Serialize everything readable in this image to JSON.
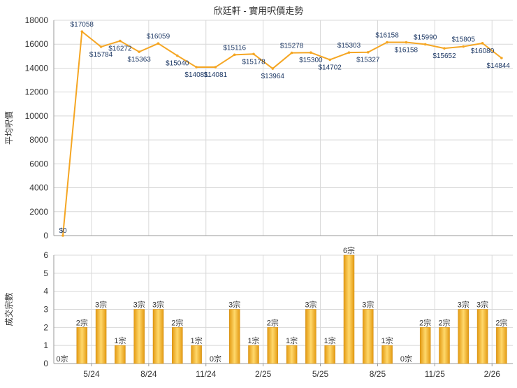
{
  "chart_data": [
    {
      "type": "line",
      "title": "欣廷軒 - 實用呎價走勢",
      "ylabel": "平均呎價",
      "ylim": [
        0,
        18000
      ],
      "yticks": [
        0,
        2000,
        4000,
        6000,
        8000,
        10000,
        12000,
        14000,
        16000,
        18000
      ],
      "grid": true,
      "color": "#f5a623",
      "values": [
        0,
        17058,
        15784,
        16272,
        15363,
        16059,
        15040,
        14081,
        14081,
        15116,
        15178,
        13964,
        15278,
        15300,
        14702,
        15303,
        15327,
        16158,
        16158,
        15990,
        15652,
        15805,
        16080,
        14844
      ],
      "labels": [
        "$0",
        "$17058",
        "$15784",
        "$16272",
        "$15363",
        "$16059",
        "$15040",
        "$14081",
        "$14081",
        "$15116",
        "$15178",
        "$13964",
        "$15278",
        "$15300",
        "$14702",
        "$15303",
        "$15327",
        "$16158",
        "$16158",
        "$15990",
        "$15652",
        "$15805",
        "$16080",
        "$14844"
      ]
    },
    {
      "type": "bar",
      "ylabel": "成交宗數",
      "ylim": [
        0,
        6
      ],
      "yticks": [
        0,
        1,
        2,
        3,
        4,
        5,
        6
      ],
      "grid": true,
      "color": "#f5b82e",
      "values": [
        0,
        2,
        3,
        1,
        3,
        3,
        2,
        1,
        0,
        3,
        1,
        2,
        1,
        3,
        1,
        6,
        3,
        1,
        0,
        2,
        2,
        3,
        3,
        2
      ],
      "labels": [
        "0宗",
        "2宗",
        "3宗",
        "1宗",
        "3宗",
        "3宗",
        "2宗",
        "1宗",
        "0宗",
        "3宗",
        "1宗",
        "2宗",
        "1宗",
        "3宗",
        "1宗",
        "6宗",
        "3宗",
        "1宗",
        "0宗",
        "2宗",
        "2宗",
        "3宗",
        "3宗",
        "2宗"
      ],
      "x_tick_labels": [
        "5/24",
        "8/24",
        "11/24",
        "2/25",
        "5/25",
        "8/25",
        "11/25",
        "2/26"
      ]
    }
  ]
}
